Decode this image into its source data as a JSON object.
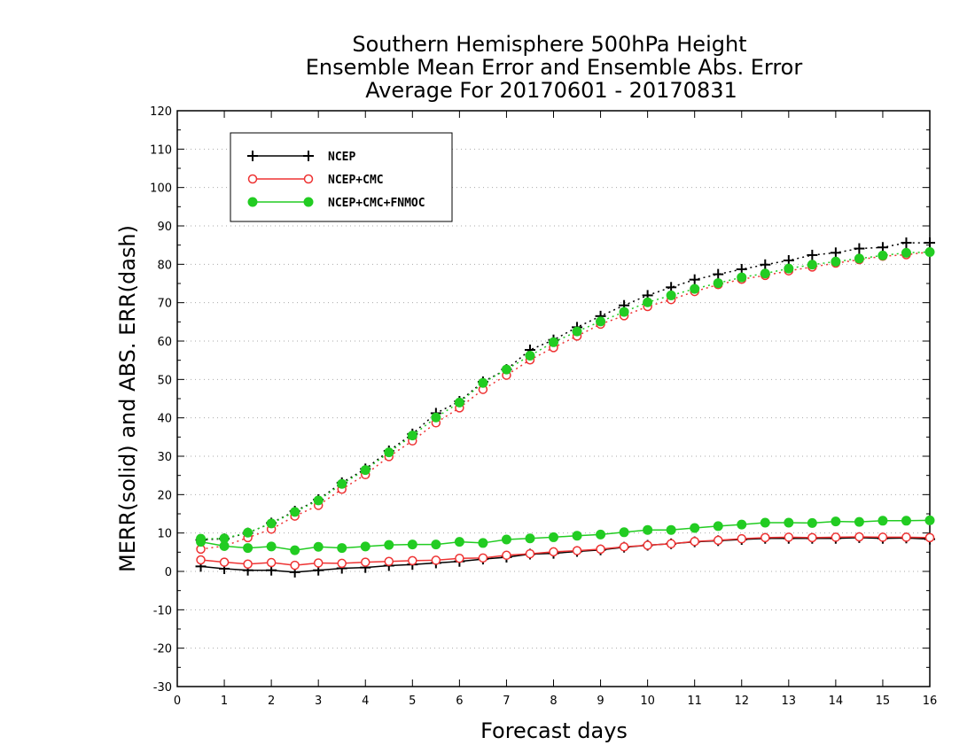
{
  "chart_data": {
    "type": "line",
    "title": [
      "Southern Hemisphere 500hPa Height",
      "Ensemble Mean Error and Ensemble Abs. Error",
      "Average For 20170601 - 20170831"
    ],
    "xlabel": "Forecast days",
    "ylabel": "MERR(solid) and ABS. ERR(dash)",
    "xlim": [
      0,
      16
    ],
    "ylim": [
      -30,
      120
    ],
    "xticks": [
      "0",
      "1",
      "2",
      "3",
      "4",
      "5",
      "6",
      "7",
      "8",
      "9",
      "10",
      "11",
      "12",
      "13",
      "14",
      "15",
      "16"
    ],
    "yticks": [
      "-30",
      "-20",
      "-10",
      "0",
      "10",
      "20",
      "30",
      "40",
      "50",
      "60",
      "70",
      "80",
      "90",
      "100",
      "110",
      "120"
    ],
    "grid": "horizontal-dotted",
    "legend_position": "top-left",
    "x": [
      0.5,
      1,
      1.5,
      2,
      2.5,
      3,
      3.5,
      4,
      4.5,
      5,
      5.5,
      6,
      6.5,
      7,
      7.5,
      8,
      8.5,
      9,
      9.5,
      10,
      10.5,
      11,
      11.5,
      12,
      12.5,
      13,
      13.5,
      14,
      14.5,
      15,
      15.5,
      16
    ],
    "series": [
      {
        "name": "NCEP",
        "color": "#000000",
        "marker": "plus",
        "merr": [
          1.3,
          0.7,
          0.3,
          0.3,
          -0.2,
          0.3,
          0.8,
          1.0,
          1.5,
          1.8,
          2.2,
          2.6,
          3.2,
          3.7,
          4.5,
          4.7,
          5.2,
          5.6,
          6.3,
          6.8,
          7.2,
          7.7,
          8.0,
          8.3,
          8.6,
          8.6,
          8.6,
          8.6,
          8.8,
          8.6,
          8.7,
          8.4
        ],
        "abserr": [
          8.2,
          8.5,
          10.0,
          12.6,
          15.7,
          18.7,
          23.1,
          26.7,
          31.4,
          35.8,
          41.2,
          44.3,
          49.4,
          52.6,
          57.7,
          60.3,
          63.6,
          66.5,
          69.3,
          71.9,
          74.0,
          76.0,
          77.4,
          78.7,
          79.9,
          81.0,
          82.4,
          83.0,
          84.1,
          84.4,
          85.6,
          85.6
        ]
      },
      {
        "name": "NCEP+CMC",
        "color": "#ee3333",
        "marker": "open-circle",
        "merr": [
          3.0,
          2.4,
          1.9,
          2.3,
          1.6,
          2.2,
          2.1,
          2.4,
          2.6,
          2.8,
          2.9,
          3.4,
          3.5,
          4.2,
          4.6,
          5.1,
          5.4,
          5.8,
          6.4,
          6.8,
          7.2,
          7.8,
          8.1,
          8.5,
          8.8,
          8.9,
          8.8,
          8.9,
          9.0,
          8.9,
          8.9,
          8.8
        ],
        "abserr": [
          5.8,
          6.6,
          8.8,
          11.0,
          14.4,
          17.2,
          21.4,
          25.2,
          29.9,
          34.0,
          38.7,
          42.6,
          47.4,
          51.1,
          55.1,
          58.3,
          61.3,
          64.4,
          66.6,
          69.0,
          70.8,
          72.9,
          74.7,
          76.1,
          77.1,
          78.3,
          79.3,
          80.3,
          81.2,
          82.1,
          82.5,
          83.2
        ]
      },
      {
        "name": "NCEP+CMC+FNMOC",
        "color": "#22cc22",
        "marker": "filled-circle",
        "merr": [
          7.7,
          6.6,
          6.1,
          6.5,
          5.5,
          6.4,
          6.1,
          6.5,
          6.9,
          7.0,
          7.0,
          7.7,
          7.4,
          8.3,
          8.6,
          8.9,
          9.3,
          9.6,
          10.2,
          10.8,
          10.8,
          11.3,
          11.8,
          12.2,
          12.7,
          12.7,
          12.6,
          13.0,
          12.9,
          13.2,
          13.2,
          13.3
        ],
        "abserr": [
          8.5,
          8.6,
          10.1,
          12.5,
          15.5,
          18.5,
          22.8,
          26.4,
          31.0,
          35.4,
          40.1,
          44.0,
          49.1,
          52.6,
          56.2,
          59.7,
          62.5,
          65.1,
          67.6,
          70.1,
          71.9,
          73.6,
          75.1,
          76.6,
          77.6,
          78.9,
          79.9,
          80.7,
          81.5,
          82.3,
          83.0,
          83.2
        ]
      }
    ]
  }
}
